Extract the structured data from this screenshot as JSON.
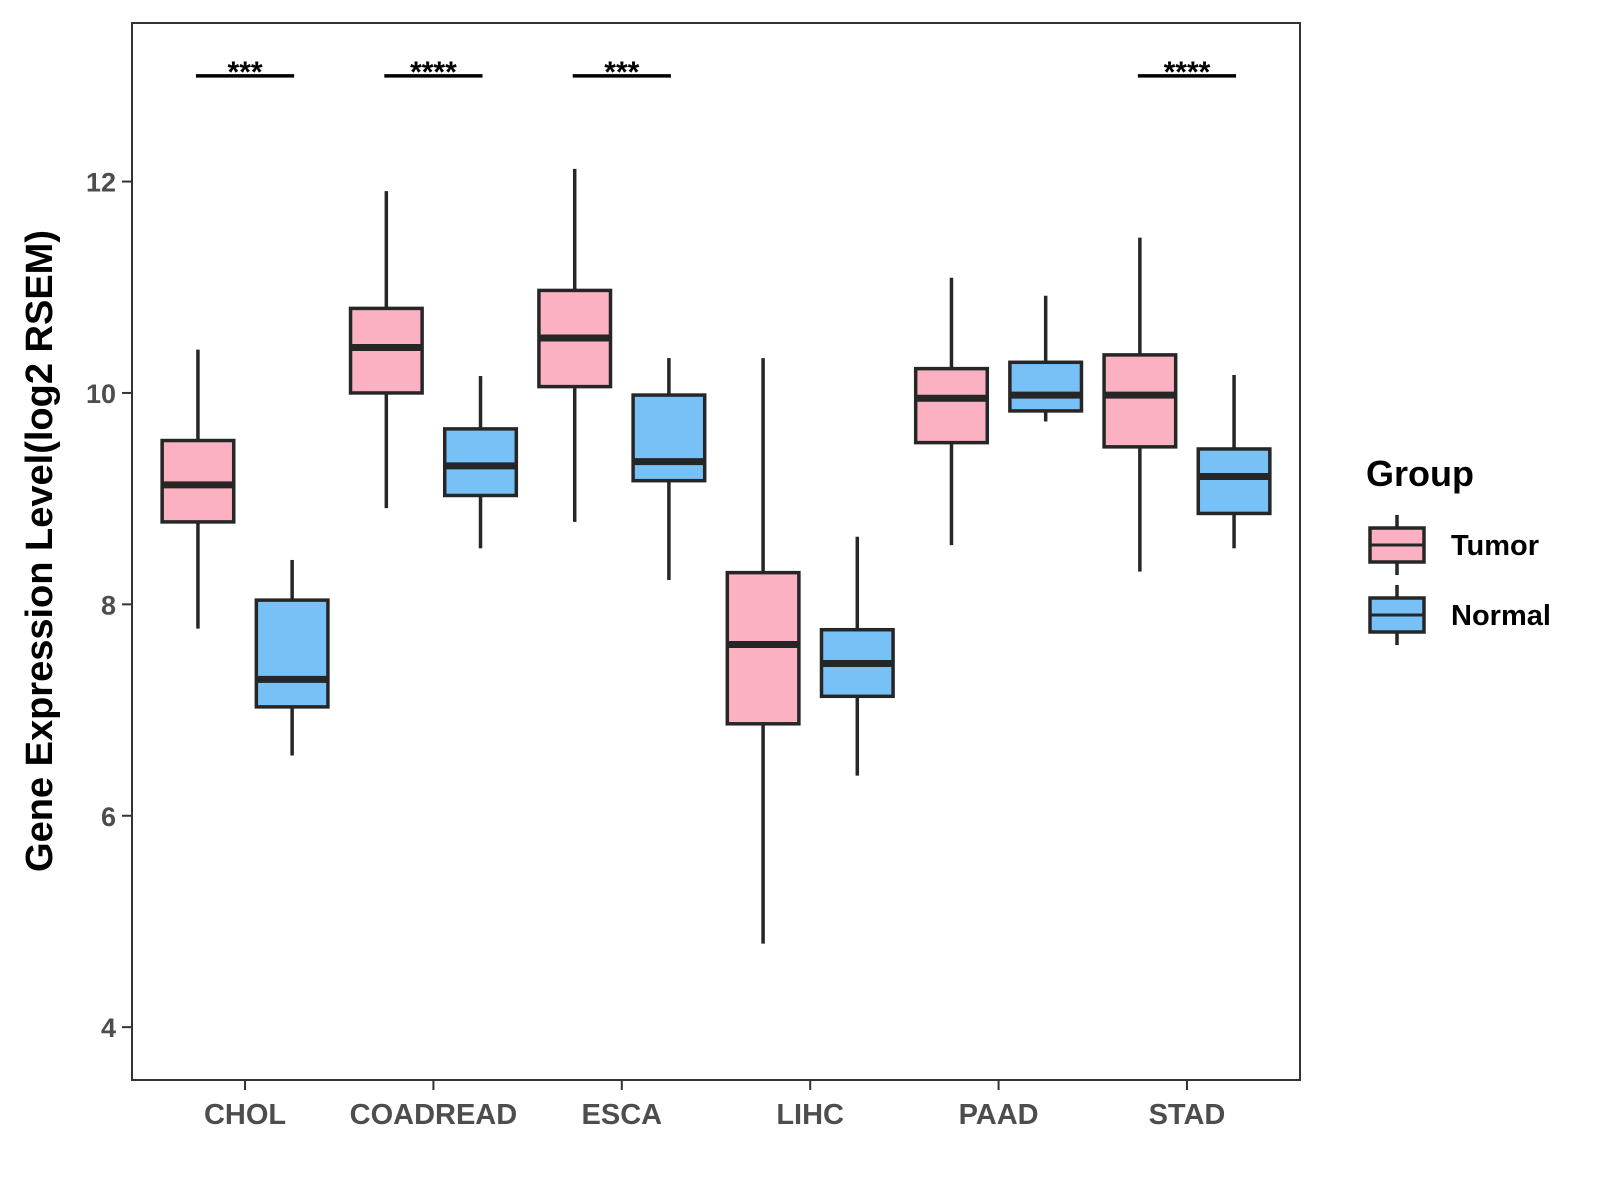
{
  "chart_data": {
    "type": "boxplot",
    "ylabel": "Gene Expression Level(log2 RSEM)",
    "xlabel": "",
    "ylim": [
      3.5,
      13.5
    ],
    "yticks": [
      4,
      6,
      8,
      10,
      12
    ],
    "categories": [
      "CHOL",
      "COADREAD",
      "ESCA",
      "LIHC",
      "PAAD",
      "STAD"
    ],
    "legend": {
      "title": "Group",
      "position": "right",
      "entries": [
        {
          "name": "Tumor",
          "color": "#fbb1c2"
        },
        {
          "name": "Normal",
          "color": "#78c1f7"
        }
      ]
    },
    "series": [
      {
        "name": "Tumor",
        "color": "#fbb1c2",
        "boxes": [
          {
            "min": 7.77,
            "q1": 8.78,
            "median": 9.13,
            "q3": 9.55,
            "max": 10.41
          },
          {
            "min": 8.91,
            "q1": 10.0,
            "median": 10.43,
            "q3": 10.8,
            "max": 11.91
          },
          {
            "min": 8.78,
            "q1": 10.06,
            "median": 10.52,
            "q3": 10.97,
            "max": 12.12
          },
          {
            "min": 4.79,
            "q1": 6.87,
            "median": 7.62,
            "q3": 8.3,
            "max": 10.33
          },
          {
            "min": 8.56,
            "q1": 9.53,
            "median": 9.95,
            "q3": 10.23,
            "max": 11.09
          },
          {
            "min": 8.31,
            "q1": 9.49,
            "median": 9.98,
            "q3": 10.36,
            "max": 11.47
          }
        ]
      },
      {
        "name": "Normal",
        "color": "#78c1f7",
        "boxes": [
          {
            "min": 6.57,
            "q1": 7.03,
            "median": 7.29,
            "q3": 8.04,
            "max": 8.42
          },
          {
            "min": 8.53,
            "q1": 9.03,
            "median": 9.31,
            "q3": 9.66,
            "max": 10.16
          },
          {
            "min": 8.23,
            "q1": 9.17,
            "median": 9.35,
            "q3": 9.98,
            "max": 10.33
          },
          {
            "min": 6.38,
            "q1": 7.13,
            "median": 7.44,
            "q3": 7.76,
            "max": 8.64
          },
          {
            "min": 9.73,
            "q1": 9.83,
            "median": 9.98,
            "q3": 10.29,
            "max": 10.92
          },
          {
            "min": 8.53,
            "q1": 8.86,
            "median": 9.21,
            "q3": 9.47,
            "max": 10.17
          }
        ]
      }
    ],
    "significance": [
      {
        "category": "CHOL",
        "label": "***"
      },
      {
        "category": "COADREAD",
        "label": "****"
      },
      {
        "category": "ESCA",
        "label": "***"
      },
      {
        "category": "STAD",
        "label": "****"
      }
    ]
  }
}
